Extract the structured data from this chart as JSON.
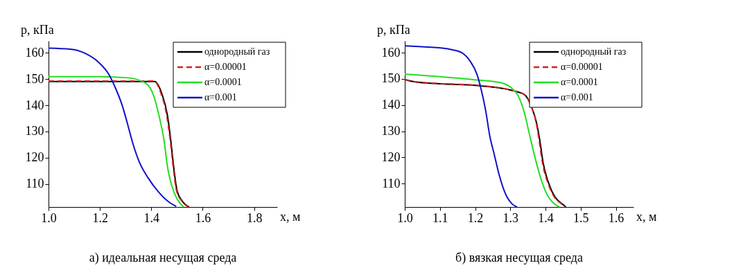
{
  "chart_data": [
    {
      "type": "line",
      "title": "а) идеальная несущая среда",
      "xlabel": "x, м",
      "ylabel": "p, кПа",
      "xlim": [
        1.0,
        1.89
      ],
      "ylim": [
        101.2,
        164.6
      ],
      "xticks": [
        {
          "value": 1.0,
          "label": "1.0"
        },
        {
          "value": 1.2,
          "label": "1.2"
        },
        {
          "value": 1.4,
          "label": "1.4"
        },
        {
          "value": 1.6,
          "label": "1.6"
        },
        {
          "value": 1.8,
          "label": "1.8"
        }
      ],
      "yticks": [
        110,
        120,
        130,
        140,
        150,
        160
      ],
      "grid": false,
      "legend": "top right",
      "line_style": "solid",
      "marker": "none",
      "series": [
        {
          "name": "однородный газ",
          "color": "#000000",
          "x": [
            1.0,
            1.2,
            1.413,
            1.44,
            1.463,
            1.476,
            1.487,
            1.5,
            1.52,
            1.547
          ],
          "values": [
            149.1,
            149.1,
            149.1,
            144.7,
            136,
            126.3,
            116.5,
            107.5,
            103.5,
            101.2
          ]
        },
        {
          "name": "α=0.00001",
          "color": "#d42020",
          "line_style": "dashed",
          "x": [
            1.0,
            1.2,
            1.41,
            1.437,
            1.46,
            1.474,
            1.485,
            1.498,
            1.518,
            1.545
          ],
          "values": [
            149.3,
            149.3,
            149.3,
            144.7,
            136,
            126.3,
            116.5,
            107.5,
            103.5,
            101.2
          ]
        },
        {
          "name": "α=0.0001",
          "color": "#22dd22",
          "x": [
            1.0,
            1.2,
            1.31,
            1.38,
            1.41,
            1.43,
            1.45,
            1.463,
            1.48,
            1.5,
            1.526
          ],
          "values": [
            150.9,
            150.9,
            150.5,
            148.3,
            143.4,
            136,
            126.3,
            116.5,
            109.2,
            104.3,
            101.2
          ]
        },
        {
          "name": "α=0.001",
          "color": "#1010cc",
          "x": [
            1.0,
            1.084,
            1.143,
            1.194,
            1.236,
            1.26,
            1.286,
            1.31,
            1.328,
            1.354,
            1.387,
            1.43,
            1.463,
            1.497
          ],
          "values": [
            161.8,
            161.4,
            159.8,
            156.5,
            151.6,
            146.7,
            140.2,
            132,
            125.5,
            118.2,
            112.4,
            106.7,
            103.5,
            101.4
          ]
        }
      ]
    },
    {
      "type": "line",
      "title": "б) вязкая несущая среда",
      "xlabel": "x, м",
      "ylabel": "p, кПа",
      "xlim": [
        1.0,
        1.65
      ],
      "ylim": [
        101.1,
        164.5
      ],
      "xticks": [
        {
          "value": 1.0,
          "label": "1.0"
        },
        {
          "value": 1.1,
          "label": "1.1"
        },
        {
          "value": 1.2,
          "label": "1.2"
        },
        {
          "value": 1.3,
          "label": "1.3"
        },
        {
          "value": 1.4,
          "label": "1.4"
        },
        {
          "value": 1.5,
          "label": "1.5"
        },
        {
          "value": 1.6,
          "label": "1.6"
        }
      ],
      "yticks": [
        110,
        120,
        130,
        140,
        150,
        160
      ],
      "grid": false,
      "legend": "top right",
      "line_style": "solid",
      "marker": "none",
      "series": [
        {
          "name": "однородный газ",
          "color": "#000000",
          "x": [
            1.0,
            1.026,
            1.1,
            1.2,
            1.285,
            1.316,
            1.34,
            1.36,
            1.375,
            1.384,
            1.393,
            1.41,
            1.427,
            1.446,
            1.458
          ],
          "values": [
            149.7,
            148.9,
            148.1,
            147.5,
            146.2,
            145.2,
            144,
            139.4,
            132.9,
            126.3,
            118.1,
            109.8,
            104.9,
            102.4,
            101.1
          ]
        },
        {
          "name": "α=0.00001",
          "color": "#d42020",
          "line_style": "dashed",
          "x": [
            1.0,
            1.026,
            1.1,
            1.2,
            1.285,
            1.316,
            1.34,
            1.36,
            1.374,
            1.382,
            1.391,
            1.408,
            1.425,
            1.444,
            1.456
          ],
          "values": [
            149.8,
            149,
            148.2,
            147.6,
            146.2,
            145.2,
            144,
            139.4,
            132.9,
            126.3,
            118.1,
            109.8,
            104.9,
            102.4,
            101.1
          ]
        },
        {
          "name": "α=0.0001",
          "color": "#22dd22",
          "x": [
            1.0,
            1.1,
            1.193,
            1.273,
            1.304,
            1.322,
            1.34,
            1.353,
            1.369,
            1.384,
            1.402,
            1.424,
            1.44
          ],
          "values": [
            151.8,
            150.8,
            149.7,
            148.5,
            146.4,
            143.6,
            137,
            129.6,
            120.6,
            113.1,
            106.5,
            102.4,
            101.1
          ]
        },
        {
          "name": "α=0.001",
          "color": "#1010cc",
          "x": [
            1.0,
            1.069,
            1.131,
            1.162,
            1.186,
            1.205,
            1.217,
            1.23,
            1.242,
            1.254,
            1.267,
            1.285,
            1.304,
            1.319
          ],
          "values": [
            162.6,
            162.1,
            161.2,
            160,
            156.7,
            151.8,
            146,
            137.8,
            127.9,
            121.3,
            114,
            106.5,
            102.4,
            101.1
          ]
        }
      ]
    }
  ]
}
